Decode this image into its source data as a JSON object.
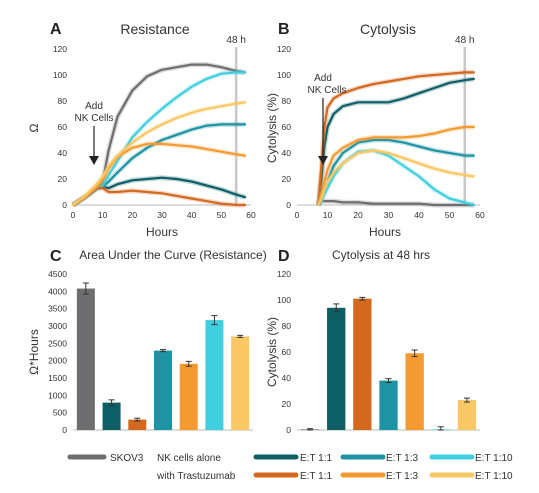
{
  "figure": {
    "colors": {
      "skov3": "#6e6e70",
      "et11_nk": "#0e5e66",
      "et13_nk": "#1e93a3",
      "et110_nk": "#3fcfdf",
      "et11_tz": "#d3691e",
      "et13_tz": "#f59a30",
      "et110_tz": "#fac765",
      "marker": "#c8c8c8",
      "axis": "#bbbbbb",
      "text": "#333333"
    },
    "legend": {
      "skov3_label": "SKOV3",
      "nk_row_label": "NK cells alone",
      "tz_row_label": "with Trastuzumab",
      "ratio_labels": [
        "E:T 1:1",
        "E:T 1:3",
        "E:T 1:10"
      ]
    }
  },
  "chart_data": [
    {
      "panel": "A",
      "type": "line",
      "title": "Resistance",
      "xlabel": "Hours",
      "ylabel": "Ω",
      "xlim": [
        0,
        60
      ],
      "ylim": [
        0,
        120
      ],
      "xticks": [
        0,
        10,
        20,
        30,
        40,
        50,
        60
      ],
      "yticks": [
        0,
        20,
        40,
        60,
        80,
        100,
        120
      ],
      "vertical_marker": {
        "x": 55,
        "label": "48 h"
      },
      "annotation": {
        "text": [
          "Add",
          "NK Cells"
        ],
        "arrow_x": 8.5
      },
      "x": [
        0,
        4,
        8,
        10,
        12,
        15,
        20,
        25,
        30,
        35,
        40,
        45,
        50,
        55,
        58
      ],
      "series": [
        {
          "name": "SKOV3",
          "color_key": "skov3",
          "values": [
            0,
            6,
            13,
            18,
            42,
            68,
            88,
            99,
            104,
            106,
            108,
            108,
            106,
            103,
            102
          ]
        },
        {
          "name": "E:T 1:1",
          "color_key": "et11_nk",
          "values": [
            0,
            6,
            13,
            14,
            13,
            16,
            19,
            20,
            21,
            20,
            18,
            15,
            12,
            8,
            6
          ]
        },
        {
          "name": "E:T 1:3",
          "color_key": "et13_nk",
          "values": [
            0,
            6,
            13,
            14,
            18,
            25,
            36,
            44,
            50,
            54,
            58,
            61,
            62,
            62,
            62
          ]
        },
        {
          "name": "E:T 1:10",
          "color_key": "et110_nk",
          "values": [
            0,
            6,
            13,
            15,
            23,
            34,
            52,
            64,
            74,
            83,
            91,
            97,
            101,
            102,
            102
          ]
        },
        {
          "name": "E:T 1:1",
          "color_key": "et11_tz",
          "values": [
            0,
            6,
            13,
            13,
            10,
            10,
            11,
            10,
            9,
            7,
            5,
            3,
            1,
            0,
            0
          ]
        },
        {
          "name": "E:T 1:3",
          "color_key": "et13_tz",
          "values": [
            0,
            6,
            14,
            19,
            28,
            37,
            44,
            47,
            47,
            46,
            45,
            43,
            41,
            39,
            38
          ]
        },
        {
          "name": "E:T 1:10",
          "color_key": "et110_tz",
          "values": [
            0,
            7,
            16,
            22,
            30,
            38,
            48,
            56,
            62,
            67,
            71,
            74,
            76,
            78,
            79
          ]
        }
      ]
    },
    {
      "panel": "B",
      "type": "line",
      "title": "Cytolysis",
      "xlabel": "Hours",
      "ylabel": "Cytolysis (%)",
      "xlim": [
        0,
        60
      ],
      "ylim": [
        0,
        120
      ],
      "xticks": [
        0,
        10,
        20,
        30,
        40,
        50,
        60
      ],
      "yticks": [
        0,
        20,
        40,
        60,
        80,
        100,
        120
      ],
      "vertical_marker": {
        "x": 55,
        "label": "48 h"
      },
      "annotation": {
        "text": [
          "Add",
          "NK Cells"
        ],
        "arrow_x": 7.5
      },
      "x": [
        7,
        8,
        9,
        10,
        12,
        15,
        20,
        25,
        30,
        35,
        40,
        45,
        50,
        55,
        58
      ],
      "series": [
        {
          "name": "SKOV3",
          "color_key": "skov3",
          "values": [
            0,
            3,
            3,
            3,
            3,
            2,
            2,
            1,
            1,
            1,
            1,
            0,
            0,
            0,
            0
          ]
        },
        {
          "name": "E:T 1:1",
          "color_key": "et11_nk",
          "values": [
            0,
            20,
            45,
            60,
            70,
            76,
            79,
            79,
            79,
            82,
            86,
            90,
            94,
            96,
            97
          ]
        },
        {
          "name": "E:T 1:3",
          "color_key": "et13_nk",
          "values": [
            0,
            5,
            12,
            18,
            30,
            40,
            48,
            50,
            50,
            48,
            45,
            42,
            40,
            38,
            38
          ]
        },
        {
          "name": "E:T 1:10",
          "color_key": "et110_nk",
          "values": [
            0,
            3,
            8,
            13,
            22,
            32,
            41,
            42,
            38,
            30,
            22,
            12,
            5,
            2,
            0
          ]
        },
        {
          "name": "E:T 1:1",
          "color_key": "et11_tz",
          "values": [
            0,
            30,
            60,
            75,
            82,
            86,
            90,
            93,
            95,
            97,
            99,
            100,
            101,
            102,
            102
          ]
        },
        {
          "name": "E:T 1:3",
          "color_key": "et13_tz",
          "values": [
            0,
            8,
            18,
            27,
            38,
            44,
            50,
            52,
            52,
            52,
            53,
            55,
            58,
            60,
            60
          ]
        },
        {
          "name": "E:T 1:10",
          "color_key": "et110_tz",
          "values": [
            0,
            5,
            12,
            18,
            25,
            32,
            40,
            42,
            40,
            36,
            32,
            28,
            25,
            23,
            22
          ]
        }
      ]
    },
    {
      "panel": "C",
      "type": "bar",
      "title": "Area Under the Curve (Resistance)",
      "xlabel": "",
      "ylabel": "Ω*Hours",
      "ylim": [
        0,
        4500
      ],
      "yticks": [
        0,
        500,
        1000,
        1500,
        2000,
        2500,
        3000,
        3500,
        4000,
        4500
      ],
      "bars": [
        {
          "group": "SKOV3",
          "color_key": "skov3",
          "value": 4080,
          "error": 160
        },
        {
          "group": "NK E:T 1:1",
          "color_key": "et11_nk",
          "value": 790,
          "error": 80
        },
        {
          "group": "Trastuzumab E:T 1:1",
          "color_key": "et11_tz",
          "value": 300,
          "error": 40
        },
        {
          "group": "NK E:T 1:3",
          "color_key": "et13_nk",
          "value": 2290,
          "error": 30
        },
        {
          "group": "Trastuzumab E:T 1:3",
          "color_key": "et13_tz",
          "value": 1910,
          "error": 70
        },
        {
          "group": "NK E:T 1:10",
          "color_key": "et110_nk",
          "value": 3170,
          "error": 130
        },
        {
          "group": "Trastuzumab E:T 1:10",
          "color_key": "et110_tz",
          "value": 2700,
          "error": 30
        }
      ]
    },
    {
      "panel": "D",
      "type": "bar",
      "title": "Cytolysis at 48 hrs",
      "xlabel": "",
      "ylabel": "Cytolysis (%)",
      "ylim": [
        0,
        120
      ],
      "yticks": [
        0,
        20,
        40,
        60,
        80,
        100,
        120
      ],
      "bars": [
        {
          "group": "SKOV3",
          "color_key": "skov3",
          "value": 0.5,
          "error": 0.5
        },
        {
          "group": "NK E:T 1:1",
          "color_key": "et11_nk",
          "value": 94,
          "error": 3
        },
        {
          "group": "Trastuzumab E:T 1:1",
          "color_key": "et11_tz",
          "value": 101,
          "error": 1
        },
        {
          "group": "NK E:T 1:3",
          "color_key": "et13_nk",
          "value": 38,
          "error": 1.5
        },
        {
          "group": "Trastuzumab E:T 1:3",
          "color_key": "et13_tz",
          "value": 59,
          "error": 2.5
        },
        {
          "group": "NK E:T 1:10",
          "color_key": "et110_nk",
          "value": 0.5,
          "error": 2
        },
        {
          "group": "Trastuzumab E:T 1:10",
          "color_key": "et110_tz",
          "value": 23,
          "error": 1.5
        }
      ]
    }
  ]
}
